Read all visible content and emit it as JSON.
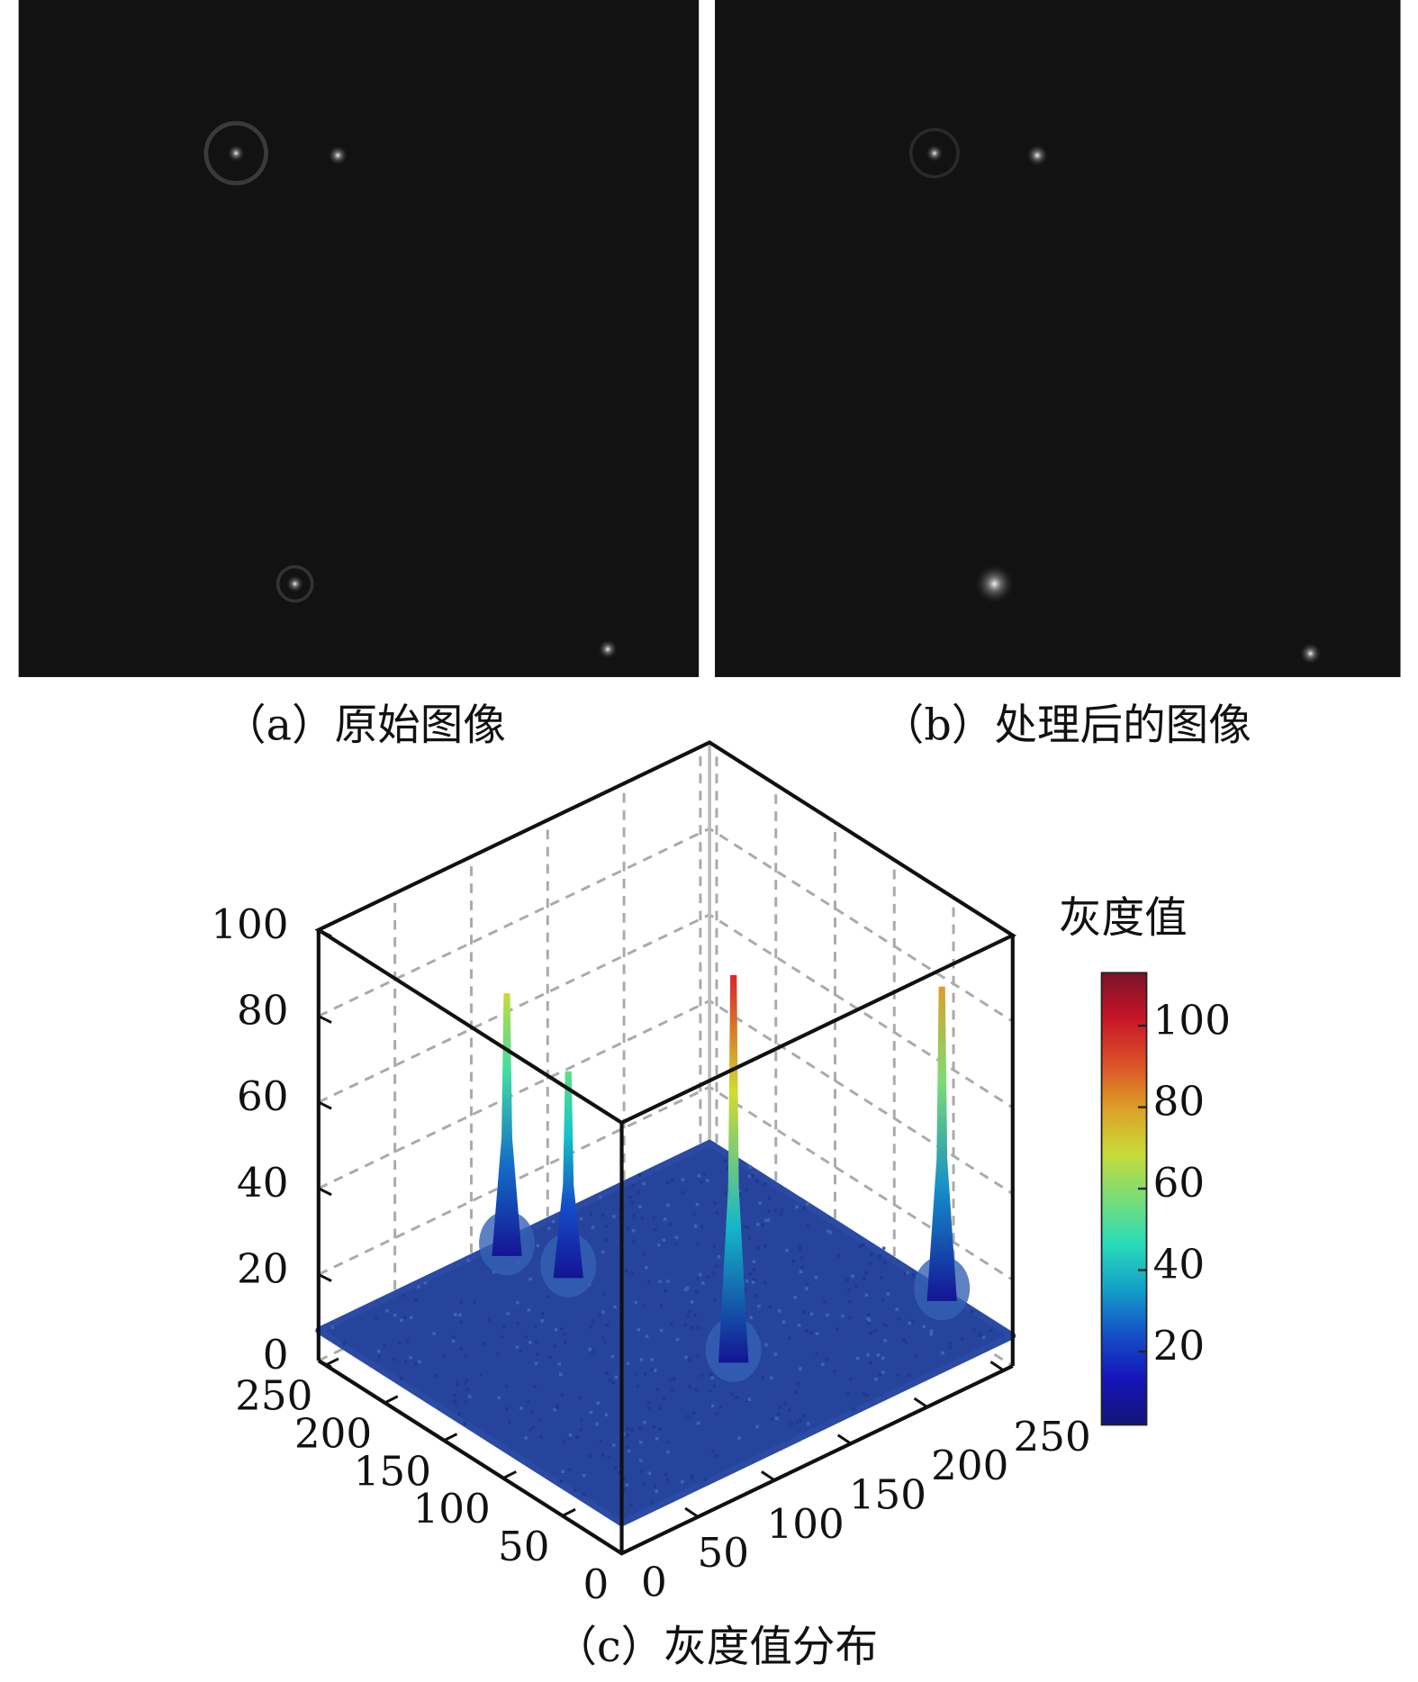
{
  "panels": [
    {
      "caption": "（a）原始图像"
    },
    {
      "caption": "（b）处理后的图像"
    }
  ],
  "chart_data": {
    "type": "surface3d",
    "caption": "（c）灰度值分布",
    "xlim": [
      0,
      256
    ],
    "xticks": [
      0,
      50,
      100,
      150,
      200,
      250
    ],
    "ylim": [
      0,
      256
    ],
    "yticks": [
      0,
      50,
      100,
      150,
      200,
      250
    ],
    "zlim": [
      0,
      100
    ],
    "zticks": [
      0,
      20,
      40,
      60,
      80,
      100
    ],
    "grid": true,
    "peaks": [
      {
        "x": 114,
        "y": 244,
        "z": 68
      },
      {
        "x": 124,
        "y": 205,
        "z": 55
      },
      {
        "x": 136,
        "y": 81,
        "z": 97
      },
      {
        "x": 250,
        "y": 52,
        "z": 80
      }
    ],
    "colorbar": {
      "label": "灰度值",
      "lim": [
        2,
        113
      ],
      "ticks": [
        20,
        40,
        60,
        80,
        100
      ]
    }
  }
}
